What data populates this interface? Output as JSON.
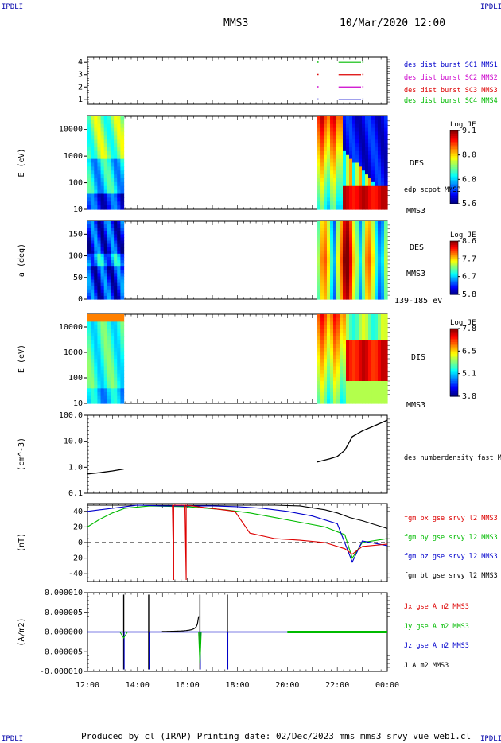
{
  "header": {
    "corner_label": "IPDLI",
    "spacecraft": "MMS3",
    "datetime": "10/Mar/2020 12:00"
  },
  "footer": {
    "text": "Produced by cl (IRAP)   Printing date: 02/Dec/2023   mms_mms3_srvy_vue_web1.cl"
  },
  "colors": {
    "mms1": "#0000cc",
    "mms2": "#cc00cc",
    "mms3": "#dd0000",
    "mms4": "#00bb00",
    "black": "#000000"
  },
  "chart_data": [
    {
      "type": "line",
      "panel": "burst-availability",
      "y_ticks": [
        "1",
        "2",
        "3",
        "4"
      ],
      "ylim": [
        0.6,
        4.4
      ],
      "series": [
        {
          "name": "des dist burst SC1 MMS1",
          "color_key": "mms1",
          "y": 1
        },
        {
          "name": "des dist burst SC2 MMS2",
          "color_key": "mms2",
          "y": 2
        },
        {
          "name": "des dist burst SC3 MMS3",
          "color_key": "mms3",
          "y": 3
        },
        {
          "name": "des dist burst SC4 MMS4",
          "color_key": "mms4",
          "y": 4
        }
      ],
      "segments_hours": [
        [
          22.05,
          22.95
        ]
      ]
    },
    {
      "type": "heatmap",
      "panel": "des-energy",
      "ylabel": "E (eV)",
      "y_ticks": [
        "10",
        "100",
        "1000",
        "10000"
      ],
      "scale": "log",
      "labels": [
        "DES",
        "edp scpot MMS3",
        "MMS3"
      ],
      "colorbar": {
        "title": "Log JE",
        "ticks": [
          "9.1",
          "8.0",
          "6.8",
          "5.6"
        ]
      },
      "data_intervals_hours": [
        [
          12.0,
          13.45
        ],
        [
          21.2,
          24.0
        ]
      ]
    },
    {
      "type": "heatmap",
      "panel": "des-pitch-angle",
      "ylabel": "a (deg)",
      "y_ticks": [
        "0",
        "50",
        "100",
        "150"
      ],
      "ylim": [
        0,
        180
      ],
      "labels": [
        "DES",
        "MMS3",
        "139-185 eV"
      ],
      "colorbar": {
        "title": "Log JE",
        "ticks": [
          "8.6",
          "7.7",
          "6.7",
          "5.8"
        ]
      },
      "data_intervals_hours": [
        [
          12.0,
          13.45
        ],
        [
          21.2,
          24.0
        ]
      ]
    },
    {
      "type": "heatmap",
      "panel": "dis-energy",
      "ylabel": "E (eV)",
      "y_ticks": [
        "10",
        "100",
        "1000",
        "10000"
      ],
      "scale": "log",
      "labels": [
        "DIS",
        "MMS3"
      ],
      "colorbar": {
        "title": "Log JE",
        "ticks": [
          "7.8",
          "6.5",
          "5.1",
          "3.8"
        ]
      },
      "data_intervals_hours": [
        [
          12.0,
          13.45
        ],
        [
          21.2,
          24.0
        ]
      ]
    },
    {
      "type": "line",
      "panel": "density",
      "ylabel": "(cm^-3)",
      "y_ticks": [
        "0.1",
        "1.0",
        "10.0",
        "100.0"
      ],
      "scale": "log",
      "ylim": [
        0.1,
        100
      ],
      "series": [
        {
          "name": "des numberdensity fast M",
          "color_key": "black"
        }
      ],
      "x": [
        12.0,
        12.5,
        13.0,
        13.45,
        21.2,
        21.7,
        22.0,
        22.3,
        22.6,
        23.0,
        23.5,
        24.0
      ],
      "y": [
        0.55,
        0.62,
        0.72,
        0.85,
        1.6,
        2.1,
        2.6,
        4.5,
        15.0,
        25.0,
        40.0,
        65.0
      ]
    },
    {
      "type": "line",
      "panel": "magnetic-field",
      "ylabel": "(nT)",
      "y_ticks": [
        "-40",
        "-20",
        "0",
        "20",
        "40"
      ],
      "ylim": [
        -50,
        50
      ],
      "series": [
        {
          "name": "fgm bx gse srvy l2 MMS3",
          "color_key": "mms3",
          "x": [
            15.4,
            15.45,
            15.45,
            15.9,
            15.95,
            15.95,
            17.9,
            18.5,
            19.5,
            20.5,
            21.5,
            22.3,
            22.6,
            23.0,
            24.0
          ],
          "y": [
            48,
            -48,
            48,
            48,
            -48,
            48,
            40,
            12,
            5,
            3,
            0,
            -8,
            -15,
            -5,
            -2
          ]
        },
        {
          "name": "fgm by gse srvy l2 MMS3",
          "color_key": "mms4",
          "x": [
            12.0,
            12.5,
            13.0,
            13.5,
            14.5,
            16.0,
            17.5,
            18.5,
            19.5,
            20.5,
            21.5,
            22.3,
            22.6,
            23.0,
            24.0
          ],
          "y": [
            20,
            30,
            38,
            44,
            47,
            46,
            42,
            38,
            32,
            26,
            20,
            10,
            -20,
            0,
            5
          ]
        },
        {
          "name": "fgm bz gse srvy l2 MMS3",
          "color_key": "mms1",
          "x": [
            12.0,
            12.5,
            13.0,
            13.5,
            14.0,
            15.0,
            16.0,
            17.0,
            18.0,
            19.0,
            20.0,
            21.0,
            22.0,
            22.6,
            23.0,
            24.0
          ],
          "y": [
            40,
            42,
            44,
            46,
            48,
            47,
            47,
            47,
            46,
            44,
            40,
            34,
            24,
            -25,
            2,
            -4
          ]
        },
        {
          "name": "fgm bt gse srvy l2 MMS3",
          "color_key": "black",
          "x": [
            12.0,
            13.5,
            15.0,
            16.5,
            18.0,
            19.5,
            20.5,
            21.5,
            22.0,
            22.5,
            23.0,
            24.0
          ],
          "y": [
            48,
            48,
            48,
            48,
            48,
            48,
            47,
            42,
            38,
            32,
            28,
            18
          ]
        }
      ]
    },
    {
      "type": "line",
      "panel": "current-density",
      "ylabel": "(A/m2)",
      "y_ticks": [
        "-0.000010",
        "-0.000005",
        "0.000000",
        "0.000005",
        "0.000010"
      ],
      "ylim": [
        -1e-05,
        1e-05
      ],
      "series": [
        {
          "name": "Jx gse A m2 MMS3",
          "color_key": "mms3"
        },
        {
          "name": "Jy gse A m2 MMS3",
          "color_key": "mms4"
        },
        {
          "name": "Jz gse A m2 MMS3",
          "color_key": "mms1"
        },
        {
          "name": "J A m2 MMS3",
          "color_key": "black"
        }
      ],
      "spikes_hours": [
        13.45,
        14.45,
        16.5,
        17.6
      ],
      "x_ticks": [
        "12:00",
        "14:00",
        "16:00",
        "18:00",
        "20:00",
        "22:00",
        "00:00"
      ],
      "xlim_hours": [
        12,
        24
      ]
    }
  ]
}
